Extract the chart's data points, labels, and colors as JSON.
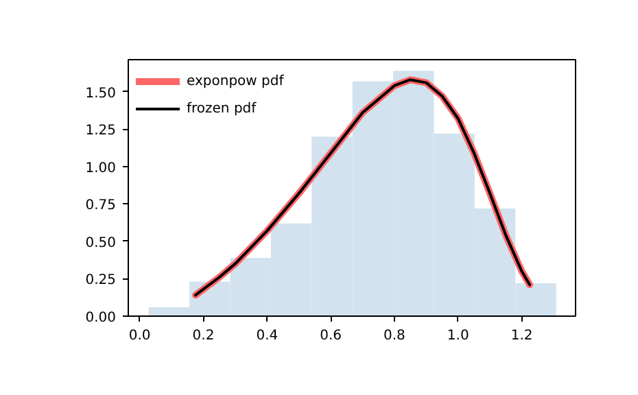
{
  "chart_data": {
    "type": "histogram",
    "bins": [
      0.028,
      0.156,
      0.284,
      0.412,
      0.54,
      0.668,
      0.796,
      0.924,
      1.052,
      1.18,
      1.308
    ],
    "values": [
      0.06,
      0.23,
      0.39,
      0.62,
      1.2,
      1.57,
      1.64,
      1.22,
      0.72,
      0.22
    ],
    "color": "#d2e3ef",
    "series": [
      {
        "type": "line",
        "name": "exponpow pdf",
        "color": "#ff6666",
        "x": [
          0.175,
          0.25,
          0.3,
          0.4,
          0.5,
          0.6,
          0.7,
          0.8,
          0.85,
          0.9,
          0.95,
          1.0,
          1.05,
          1.1,
          1.15,
          1.2,
          1.225
        ],
        "values": [
          0.14,
          0.26,
          0.35,
          0.57,
          0.82,
          1.09,
          1.36,
          1.54,
          1.58,
          1.56,
          1.47,
          1.32,
          1.09,
          0.82,
          0.54,
          0.3,
          0.21
        ]
      },
      {
        "type": "line",
        "name": "frozen pdf",
        "color": "#000000",
        "x": [
          0.175,
          0.25,
          0.3,
          0.4,
          0.5,
          0.6,
          0.7,
          0.8,
          0.85,
          0.9,
          0.95,
          1.0,
          1.05,
          1.1,
          1.15,
          1.2,
          1.225
        ],
        "values": [
          0.14,
          0.26,
          0.35,
          0.57,
          0.82,
          1.09,
          1.36,
          1.54,
          1.58,
          1.56,
          1.47,
          1.32,
          1.09,
          0.82,
          0.54,
          0.3,
          0.21
        ]
      }
    ],
    "xlim": [
      -0.036,
      1.369
    ],
    "ylim": [
      0,
      1.714
    ],
    "xticks": [
      {
        "value": 0,
        "label": "0.0"
      },
      {
        "value": 0.2,
        "label": "0.2"
      },
      {
        "value": 0.4,
        "label": "0.4"
      },
      {
        "value": 0.6,
        "label": "0.6"
      },
      {
        "value": 0.8,
        "label": "0.8"
      },
      {
        "value": 1,
        "label": "1.0"
      },
      {
        "value": 1.2,
        "label": "1.2"
      }
    ],
    "yticks": [
      {
        "value": 0,
        "label": "0.00"
      },
      {
        "value": 0.25,
        "label": "0.25"
      },
      {
        "value": 0.5,
        "label": "0.50"
      },
      {
        "value": 0.75,
        "label": "0.75"
      },
      {
        "value": 1,
        "label": "1.00"
      },
      {
        "value": 1.25,
        "label": "1.25"
      },
      {
        "value": 1.5,
        "label": "1.50"
      }
    ],
    "legend": "top left",
    "grid": false,
    "line_style": "solid"
  }
}
